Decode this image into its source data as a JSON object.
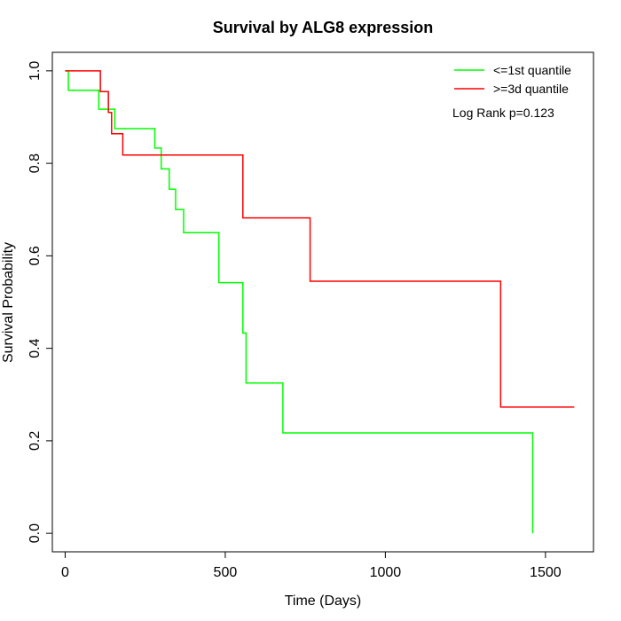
{
  "chart_data": {
    "type": "line",
    "title": "Survival by ALG8 expression",
    "xlabel": "Time (Days)",
    "ylabel": "Survival Probability",
    "xlim": [
      -40,
      1650
    ],
    "ylim": [
      -0.04,
      1.04
    ],
    "xticks": [
      0,
      500,
      1000,
      1500
    ],
    "yticks": [
      0.0,
      0.2,
      0.4,
      0.6,
      0.8,
      1.0
    ],
    "xtick_labels": [
      "0",
      "500",
      "1000",
      "1500"
    ],
    "ytick_labels": [
      "0.0",
      "0.2",
      "0.4",
      "0.6",
      "0.8",
      "1.0"
    ],
    "grid": false,
    "legend_position": "top-right",
    "annotation": "Log Rank p=0.123",
    "series": [
      {
        "name": "<=1st quantile",
        "color": "#00ff00",
        "step": true,
        "points": [
          [
            0,
            1.0
          ],
          [
            10,
            0.958
          ],
          [
            105,
            0.917
          ],
          [
            155,
            0.875
          ],
          [
            280,
            0.833
          ],
          [
            300,
            0.788
          ],
          [
            325,
            0.744
          ],
          [
            345,
            0.7
          ],
          [
            370,
            0.65
          ],
          [
            480,
            0.542
          ],
          [
            555,
            0.433
          ],
          [
            565,
            0.325
          ],
          [
            680,
            0.217
          ],
          [
            1460,
            0.0
          ]
        ]
      },
      {
        "name": ">=3d quantile",
        "color": "#ff0000",
        "step": true,
        "points": [
          [
            0,
            1.0
          ],
          [
            110,
            0.955
          ],
          [
            135,
            0.91
          ],
          [
            145,
            0.864
          ],
          [
            180,
            0.818
          ],
          [
            555,
            0.682
          ],
          [
            765,
            0.545
          ],
          [
            1360,
            0.273
          ],
          [
            1590,
            0.273
          ]
        ]
      }
    ]
  }
}
